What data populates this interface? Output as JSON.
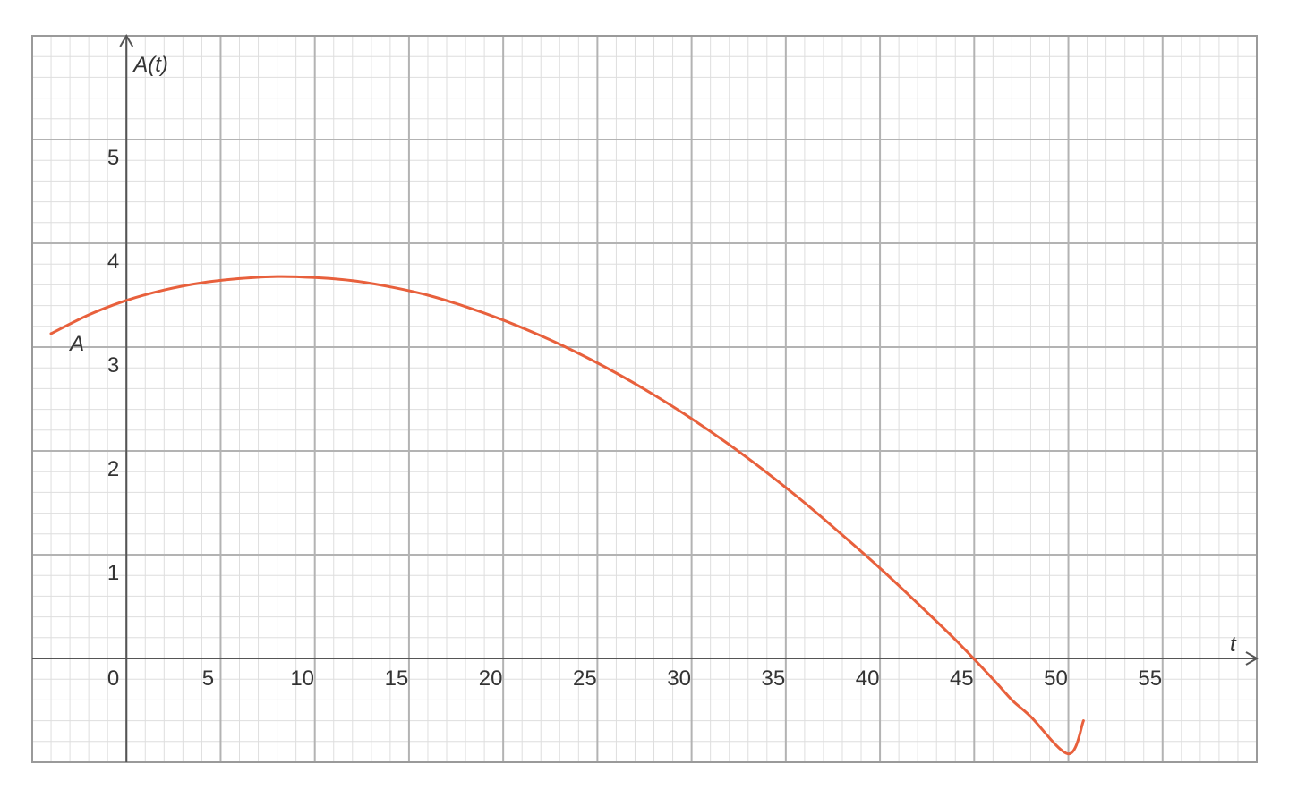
{
  "chart_data": {
    "type": "line",
    "title": "",
    "xlabel": "t",
    "ylabel": "A(t)",
    "xlim": [
      -5,
      60
    ],
    "ylim": [
      -1,
      6
    ],
    "grid": true,
    "x_ticks": [
      "0",
      "5",
      "10",
      "15",
      "20",
      "25",
      "30",
      "35",
      "40",
      "45",
      "50",
      "55"
    ],
    "y_ticks": [
      "1",
      "2",
      "3",
      "4",
      "5"
    ],
    "series": [
      {
        "name": "A",
        "color": "#e8603c",
        "x": [
          -4,
          -2,
          0,
          2,
          4,
          6,
          8,
          10,
          12,
          14,
          16,
          18,
          20,
          22,
          24,
          26,
          28,
          30,
          32,
          34,
          36,
          38,
          40,
          42,
          44,
          46,
          47,
          48,
          50,
          50.8
        ],
        "y": [
          3.13,
          3.31,
          3.45,
          3.55,
          3.62,
          3.66,
          3.68,
          3.67,
          3.64,
          3.58,
          3.5,
          3.39,
          3.26,
          3.11,
          2.94,
          2.75,
          2.54,
          2.31,
          2.06,
          1.79,
          1.5,
          1.19,
          0.87,
          0.53,
          0.18,
          -0.2,
          -0.4,
          -0.56,
          -0.92,
          -0.6
        ]
      }
    ]
  }
}
